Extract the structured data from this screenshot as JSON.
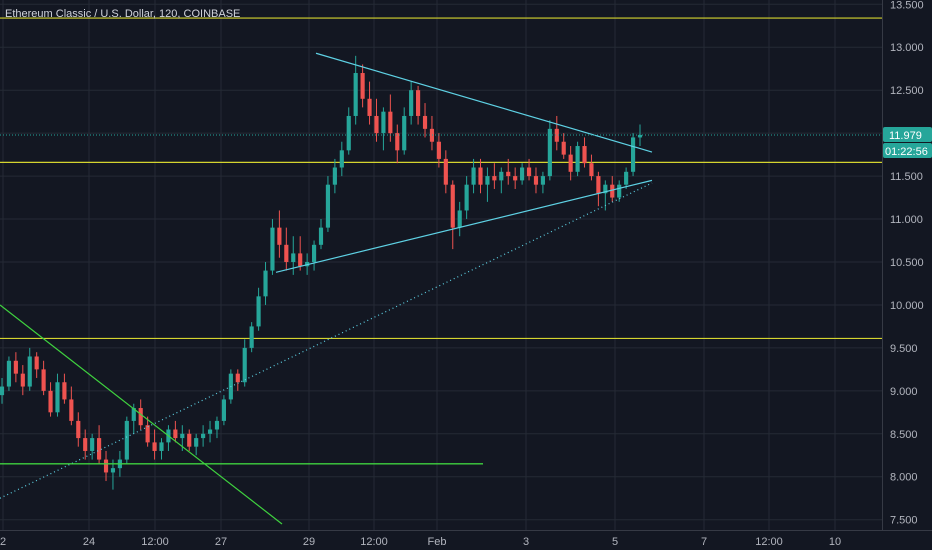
{
  "chart_data": {
    "type": "candlestick",
    "title": "Ethereum Classic / U.S. Dollar, 120, COINBASE",
    "y_ticks": [
      "7.500",
      "8.000",
      "8.500",
      "9.000",
      "9.500",
      "10.000",
      "10.500",
      "11.000",
      "11.500",
      "12.000",
      "12.500",
      "13.000",
      "13.500"
    ],
    "x_ticks": [
      "2",
      "24",
      "12:00",
      "27",
      "29",
      "12:00",
      "Feb",
      "3",
      "5",
      "7",
      "12:00",
      "10"
    ],
    "ylim": [
      7.38,
      13.55
    ],
    "grid": true,
    "last_price": "11.979",
    "countdown": "01:22:56",
    "horizontal_levels": [
      13.34,
      11.66,
      9.61,
      8.15
    ],
    "candles": [
      [
        8.95,
        9.15,
        8.85,
        9.05
      ],
      [
        9.05,
        9.4,
        9.0,
        9.35
      ],
      [
        9.35,
        9.45,
        9.1,
        9.2
      ],
      [
        9.2,
        9.3,
        8.95,
        9.05
      ],
      [
        9.05,
        9.5,
        9.0,
        9.4
      ],
      [
        9.4,
        9.45,
        9.15,
        9.25
      ],
      [
        9.25,
        9.35,
        8.95,
        9.0
      ],
      [
        9.0,
        9.1,
        8.7,
        8.75
      ],
      [
        8.75,
        9.2,
        8.7,
        9.1
      ],
      [
        9.1,
        9.2,
        8.85,
        8.9
      ],
      [
        8.9,
        9.05,
        8.6,
        8.65
      ],
      [
        8.65,
        8.75,
        8.35,
        8.45
      ],
      [
        8.45,
        8.55,
        8.2,
        8.3
      ],
      [
        8.3,
        8.5,
        8.2,
        8.45
      ],
      [
        8.45,
        8.6,
        8.15,
        8.2
      ],
      [
        8.2,
        8.3,
        7.95,
        8.05
      ],
      [
        8.05,
        8.2,
        7.85,
        8.1
      ],
      [
        8.1,
        8.3,
        8.0,
        8.2
      ],
      [
        8.2,
        8.7,
        8.15,
        8.65
      ],
      [
        8.65,
        8.85,
        8.5,
        8.8
      ],
      [
        8.8,
        8.9,
        8.55,
        8.6
      ],
      [
        8.6,
        8.7,
        8.35,
        8.4
      ],
      [
        8.4,
        8.55,
        8.2,
        8.3
      ],
      [
        8.3,
        8.45,
        8.2,
        8.4
      ],
      [
        8.4,
        8.6,
        8.3,
        8.55
      ],
      [
        8.55,
        8.65,
        8.4,
        8.45
      ],
      [
        8.45,
        8.6,
        8.3,
        8.5
      ],
      [
        8.5,
        8.55,
        8.3,
        8.35
      ],
      [
        8.35,
        8.5,
        8.25,
        8.45
      ],
      [
        8.45,
        8.6,
        8.35,
        8.5
      ],
      [
        8.5,
        8.65,
        8.4,
        8.55
      ],
      [
        8.55,
        8.7,
        8.45,
        8.65
      ],
      [
        8.65,
        8.95,
        8.6,
        8.9
      ],
      [
        8.9,
        9.25,
        8.85,
        9.2
      ],
      [
        9.2,
        9.25,
        9.0,
        9.1
      ],
      [
        9.1,
        9.6,
        9.05,
        9.5
      ],
      [
        9.5,
        9.8,
        9.45,
        9.75
      ],
      [
        9.75,
        10.2,
        9.7,
        10.1
      ],
      [
        10.1,
        10.5,
        10.0,
        10.4
      ],
      [
        10.4,
        11.0,
        10.35,
        10.9
      ],
      [
        10.9,
        11.1,
        10.55,
        10.7
      ],
      [
        10.7,
        10.9,
        10.4,
        10.5
      ],
      [
        10.5,
        10.8,
        10.35,
        10.6
      ],
      [
        10.6,
        10.8,
        10.4,
        10.45
      ],
      [
        10.45,
        10.6,
        10.35,
        10.5
      ],
      [
        10.5,
        10.75,
        10.4,
        10.7
      ],
      [
        10.7,
        11.0,
        10.65,
        10.9
      ],
      [
        10.9,
        11.5,
        10.85,
        11.4
      ],
      [
        11.4,
        11.7,
        11.3,
        11.6
      ],
      [
        11.6,
        11.9,
        11.5,
        11.8
      ],
      [
        11.8,
        12.3,
        11.75,
        12.2
      ],
      [
        12.2,
        12.9,
        12.1,
        12.7
      ],
      [
        12.7,
        12.8,
        12.3,
        12.4
      ],
      [
        12.4,
        12.6,
        12.1,
        12.2
      ],
      [
        12.2,
        12.4,
        11.9,
        12.0
      ],
      [
        12.0,
        12.3,
        11.8,
        12.25
      ],
      [
        12.25,
        12.45,
        11.9,
        12.0
      ],
      [
        12.0,
        12.1,
        11.65,
        11.8
      ],
      [
        11.8,
        12.3,
        11.75,
        12.2
      ],
      [
        12.2,
        12.6,
        12.1,
        12.5
      ],
      [
        12.5,
        12.55,
        12.1,
        12.2
      ],
      [
        12.2,
        12.35,
        11.95,
        12.05
      ],
      [
        12.05,
        12.2,
        11.8,
        11.9
      ],
      [
        11.9,
        12.0,
        11.6,
        11.7
      ],
      [
        11.7,
        11.8,
        11.3,
        11.4
      ],
      [
        11.4,
        11.45,
        10.65,
        10.9
      ],
      [
        10.9,
        11.2,
        10.8,
        11.1
      ],
      [
        11.1,
        11.5,
        11.0,
        11.4
      ],
      [
        11.4,
        11.7,
        11.3,
        11.6
      ],
      [
        11.6,
        11.7,
        11.3,
        11.4
      ],
      [
        11.4,
        11.6,
        11.2,
        11.5
      ],
      [
        11.5,
        11.65,
        11.35,
        11.45
      ],
      [
        11.45,
        11.6,
        11.3,
        11.55
      ],
      [
        11.55,
        11.7,
        11.4,
        11.5
      ],
      [
        11.5,
        11.6,
        11.35,
        11.45
      ],
      [
        11.45,
        11.65,
        11.4,
        11.6
      ],
      [
        11.6,
        11.7,
        11.45,
        11.5
      ],
      [
        11.5,
        11.6,
        11.3,
        11.4
      ],
      [
        11.4,
        11.55,
        11.3,
        11.5
      ],
      [
        11.5,
        12.15,
        11.45,
        12.05
      ],
      [
        12.05,
        12.2,
        11.8,
        11.9
      ],
      [
        11.9,
        12.0,
        11.7,
        11.75
      ],
      [
        11.75,
        11.85,
        11.45,
        11.55
      ],
      [
        11.55,
        11.9,
        11.5,
        11.85
      ],
      [
        11.85,
        11.95,
        11.6,
        11.65
      ],
      [
        11.65,
        11.75,
        11.45,
        11.5
      ],
      [
        11.5,
        11.55,
        11.15,
        11.3
      ],
      [
        11.3,
        11.45,
        11.1,
        11.4
      ],
      [
        11.4,
        11.5,
        11.2,
        11.25
      ],
      [
        11.25,
        11.45,
        11.2,
        11.4
      ],
      [
        11.4,
        11.6,
        11.35,
        11.55
      ],
      [
        11.55,
        12.0,
        11.5,
        11.95
      ],
      [
        11.95,
        12.1,
        11.85,
        11.98
      ]
    ],
    "candle_x_range": [
      0,
      640
    ],
    "trendlines": [
      {
        "style": "solid",
        "color": "#5ed1e4",
        "x": [
          316,
          652
        ],
        "y": [
          12.93,
          11.78
        ]
      },
      {
        "style": "solid",
        "color": "#5ed1e4",
        "x": [
          276,
          652
        ],
        "y": [
          10.38,
          11.45
        ]
      },
      {
        "style": "dotted",
        "color": "#5ed1e4",
        "x": [
          0,
          652
        ],
        "y": [
          7.75,
          11.42
        ]
      },
      {
        "style": "solid",
        "color": "#3fd23f",
        "x": [
          0,
          282
        ],
        "y": [
          10.0,
          7.45
        ]
      },
      {
        "style": "solid",
        "color": "#3fd23f",
        "x": [
          0,
          483
        ],
        "y": [
          8.15,
          8.15
        ]
      }
    ],
    "colors": {
      "background": "#131722",
      "up": "#26a69a",
      "down": "#ef5350",
      "level": "#d4d42f",
      "price_line": "#26a69a",
      "badge": "#26a69a"
    }
  }
}
